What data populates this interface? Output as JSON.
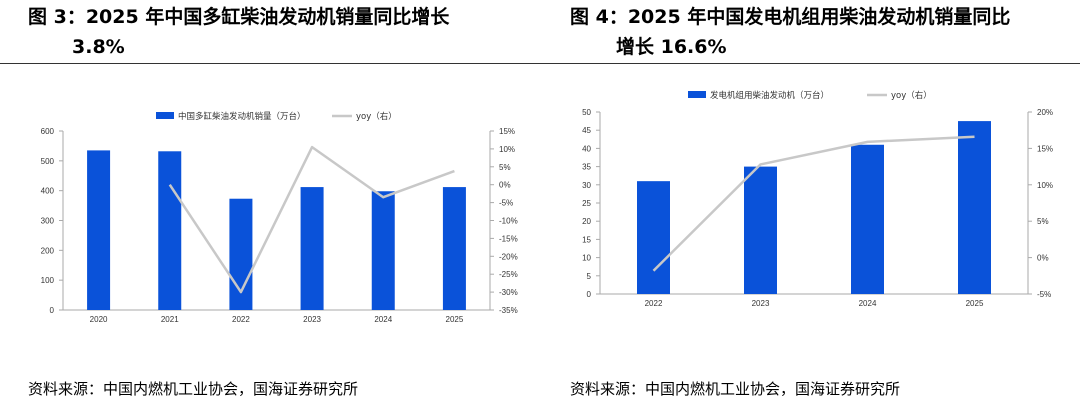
{
  "charts": [
    {
      "figure_title_line1": "图 3：2025 年中国多缸柴油发动机销量同比增长",
      "figure_title_line2": "3.8%",
      "source": "资料来源：中国内燃机工业协会，国海证券研究所"
    },
    {
      "figure_title_line1": "图 4：2025 年中国发电机组用柴油发动机销量同比",
      "figure_title_line2": "增长 16.6%",
      "source": "资料来源：中国内燃机工业协会，国海证券研究所"
    }
  ],
  "colors": {
    "bar": "#0a52d9",
    "line": "#c8c8c8",
    "axis": "#aaaaaa"
  },
  "chart_data": [
    {
      "type": "bar",
      "categories": [
        "2020",
        "2021",
        "2022",
        "2023",
        "2024",
        "2025"
      ],
      "series": [
        {
          "name": "中国多缸柴油发动机销量（万台）",
          "kind": "bar",
          "axis": "left",
          "values": [
            535,
            532,
            373,
            412,
            398,
            412
          ]
        },
        {
          "name": "yoy（右）",
          "kind": "line",
          "axis": "right",
          "values": [
            null,
            0,
            -30,
            10.5,
            -3.5,
            3.8
          ]
        }
      ],
      "y_left": {
        "min": 0,
        "max": 600,
        "step": 100,
        "ticks": [
          "0",
          "100",
          "200",
          "300",
          "400",
          "500",
          "600"
        ]
      },
      "y_right": {
        "min": -35,
        "max": 15,
        "step": 5,
        "ticks": [
          "-35%",
          "-30%",
          "-25%",
          "-20%",
          "-15%",
          "-10%",
          "-5%",
          "0%",
          "5%",
          "10%",
          "15%"
        ]
      },
      "legend": "top"
    },
    {
      "type": "bar",
      "categories": [
        "2022",
        "2023",
        "2024",
        "2025"
      ],
      "series": [
        {
          "name": "发电机组用柴油发动机（万台）",
          "kind": "bar",
          "axis": "left",
          "values": [
            31,
            35,
            41,
            47.5
          ]
        },
        {
          "name": "yoy（右）",
          "kind": "line",
          "axis": "right",
          "values": [
            -1.8,
            12.8,
            15.9,
            16.6
          ]
        }
      ],
      "y_left": {
        "min": 0,
        "max": 50,
        "step": 5,
        "ticks": [
          "0",
          "5",
          "10",
          "15",
          "20",
          "25",
          "30",
          "35",
          "40",
          "45",
          "50"
        ]
      },
      "y_right": {
        "min": -5,
        "max": 20,
        "step": 5,
        "ticks": [
          "-5%",
          "0%",
          "5%",
          "10%",
          "15%",
          "20%"
        ]
      },
      "legend": "top"
    }
  ]
}
